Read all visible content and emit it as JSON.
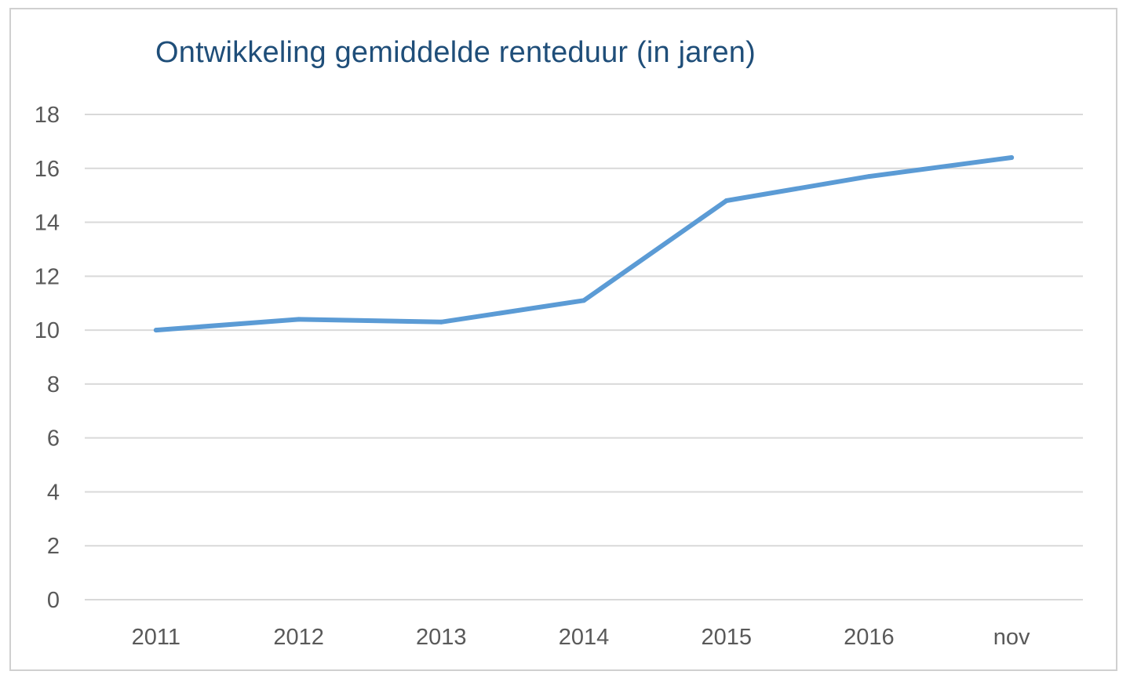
{
  "chart_data": {
    "type": "line",
    "title": "Ontwikkeling gemiddelde renteduur (in jaren)",
    "xlabel": "",
    "ylabel": "",
    "categories": [
      "2011",
      "2012",
      "2013",
      "2014",
      "2015",
      "2016",
      "nov"
    ],
    "series": [
      {
        "values": [
          10.0,
          10.4,
          10.3,
          11.1,
          14.8,
          15.7,
          16.4
        ],
        "color": "#5b9bd5"
      }
    ],
    "ylim": [
      0,
      18
    ],
    "yticks": [
      0,
      2,
      4,
      6,
      8,
      10,
      12,
      14,
      16,
      18
    ],
    "grid": true,
    "legend": "none"
  },
  "colors": {
    "title": "#1f4e79",
    "grid": "#d9d9d9",
    "tick_text": "#595959",
    "frame_border": "#d0d0d0"
  }
}
